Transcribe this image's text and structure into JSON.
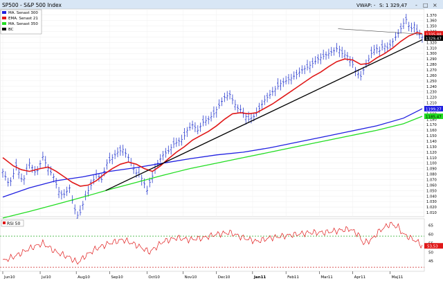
{
  "header": {
    "symbol": "SP500 - S&P 500 Index",
    "vwap": "VWAP: -",
    "s_label": "S: 1 329,47",
    "win_icons": [
      "-",
      "□",
      "×"
    ]
  },
  "legend": {
    "items": [
      {
        "label": "MA. Senast 300",
        "color": "#1f1fe0"
      },
      {
        "label": "EMA. Senast 21",
        "color": "#e01818"
      },
      {
        "label": "MA. Senast 350",
        "color": "#22dd22"
      },
      {
        "label": "BC",
        "color": "#000000"
      }
    ]
  },
  "rsi_panel": {
    "label": "RSI 50",
    "ticks": [
      "65",
      "60",
      "55",
      "50",
      "45"
    ],
    "badge": "53,53"
  },
  "chart_data": {
    "type": "candlestick",
    "title": "SP500 - S&P 500 Index",
    "x_ticks": [
      "Jun10",
      "Jul10",
      "Aug10",
      "Sep10",
      "Oct10",
      "Nov10",
      "Dec10",
      "Jan11",
      "Feb11",
      "Mar11",
      "Apr11",
      "Maj11"
    ],
    "y_ticks": [
      "1.370",
      "1.360",
      "1.350",
      "1.340",
      "1.330",
      "1.320",
      "1.310",
      "1.300",
      "1.290",
      "1.280",
      "1.270",
      "1.260",
      "1.250",
      "1.240",
      "1.230",
      "1.220",
      "1.210",
      "1.200",
      "1.190",
      "1.180",
      "1.170",
      "1.160",
      "1.150",
      "1.140",
      "1.130",
      "1.120",
      "1.110",
      "1.100",
      "1.090",
      "1.080",
      "1.070",
      "1.060",
      "1.050",
      "1.040",
      "1.030",
      "1.020",
      "1.010"
    ],
    "ylim": [
      1005,
      1376
    ],
    "badges": {
      "ma300": "1199,27",
      "ma350": "1185,47",
      "last": "1329,47",
      "ema21": "1335,88"
    },
    "close_points": [
      [
        0,
        1085
      ],
      [
        5,
        1060
      ],
      [
        10,
        1095
      ],
      [
        15,
        1065
      ],
      [
        20,
        1100
      ],
      [
        25,
        1080
      ],
      [
        30,
        1112
      ],
      [
        33,
        1095
      ],
      [
        38,
        1075
      ],
      [
        42,
        1048
      ],
      [
        45,
        1040
      ],
      [
        50,
        1055
      ],
      [
        53,
        1020
      ],
      [
        56,
        1005
      ],
      [
        58,
        1010
      ],
      [
        62,
        1040
      ],
      [
        66,
        1060
      ],
      [
        70,
        1080
      ],
      [
        74,
        1070
      ],
      [
        78,
        1100
      ],
      [
        82,
        1110
      ],
      [
        86,
        1120
      ],
      [
        90,
        1125
      ],
      [
        94,
        1110
      ],
      [
        97,
        1095
      ],
      [
        100,
        1082
      ],
      [
        103,
        1078
      ],
      [
        106,
        1062
      ],
      [
        108,
        1050
      ],
      [
        110,
        1065
      ],
      [
        113,
        1082
      ],
      [
        116,
        1100
      ],
      [
        120,
        1115
      ],
      [
        124,
        1122
      ],
      [
        128,
        1135
      ],
      [
        132,
        1140
      ],
      [
        135,
        1145
      ],
      [
        138,
        1160
      ],
      [
        142,
        1170
      ],
      [
        146,
        1160
      ],
      [
        150,
        1175
      ],
      [
        154,
        1180
      ],
      [
        158,
        1190
      ],
      [
        162,
        1205
      ],
      [
        166,
        1220
      ],
      [
        170,
        1225
      ],
      [
        173,
        1210
      ],
      [
        176,
        1200
      ],
      [
        178,
        1198
      ],
      [
        180,
        1190
      ],
      [
        184,
        1180
      ],
      [
        188,
        1185
      ],
      [
        192,
        1200
      ],
      [
        196,
        1215
      ],
      [
        200,
        1225
      ],
      [
        204,
        1235
      ],
      [
        208,
        1245
      ],
      [
        212,
        1250
      ],
      [
        216,
        1255
      ],
      [
        220,
        1262
      ],
      [
        224,
        1270
      ],
      [
        228,
        1275
      ],
      [
        232,
        1282
      ],
      [
        236,
        1290
      ],
      [
        240,
        1295
      ],
      [
        244,
        1300
      ],
      [
        248,
        1305
      ],
      [
        251,
        1310
      ],
      [
        254,
        1300
      ],
      [
        258,
        1295
      ],
      [
        262,
        1280
      ],
      [
        265,
        1265
      ],
      [
        268,
        1258
      ],
      [
        270,
        1270
      ],
      [
        273,
        1285
      ],
      [
        276,
        1300
      ],
      [
        279,
        1310
      ],
      [
        282,
        1305
      ],
      [
        285,
        1315
      ],
      [
        288,
        1310
      ],
      [
        291,
        1318
      ],
      [
        294,
        1330
      ],
      [
        297,
        1340
      ],
      [
        300,
        1355
      ],
      [
        302,
        1362
      ],
      [
        304,
        1350
      ],
      [
        306,
        1345
      ],
      [
        308,
        1352
      ],
      [
        310,
        1340
      ],
      [
        312,
        1335
      ],
      [
        314,
        1330
      ]
    ],
    "series": [
      {
        "name": "MA. Senast 300",
        "color": "#1f1fe0",
        "points": [
          [
            0,
            1038
          ],
          [
            20,
            1055
          ],
          [
            40,
            1068
          ],
          [
            60,
            1075
          ],
          [
            80,
            1085
          ],
          [
            100,
            1092
          ],
          [
            120,
            1100
          ],
          [
            140,
            1108
          ],
          [
            160,
            1115
          ],
          [
            180,
            1120
          ],
          [
            200,
            1128
          ],
          [
            220,
            1138
          ],
          [
            240,
            1148
          ],
          [
            260,
            1158
          ],
          [
            280,
            1168
          ],
          [
            300,
            1182
          ],
          [
            314,
            1199.27
          ]
        ]
      },
      {
        "name": "EMA. Senast 21",
        "color": "#e01818",
        "points": [
          [
            0,
            1110
          ],
          [
            8,
            1095
          ],
          [
            14,
            1088
          ],
          [
            20,
            1085
          ],
          [
            28,
            1090
          ],
          [
            34,
            1093
          ],
          [
            40,
            1085
          ],
          [
            46,
            1075
          ],
          [
            52,
            1065
          ],
          [
            58,
            1058
          ],
          [
            64,
            1060
          ],
          [
            70,
            1068
          ],
          [
            76,
            1080
          ],
          [
            82,
            1090
          ],
          [
            88,
            1098
          ],
          [
            94,
            1102
          ],
          [
            100,
            1098
          ],
          [
            106,
            1090
          ],
          [
            112,
            1085
          ],
          [
            118,
            1095
          ],
          [
            124,
            1108
          ],
          [
            130,
            1120
          ],
          [
            136,
            1130
          ],
          [
            142,
            1142
          ],
          [
            148,
            1150
          ],
          [
            154,
            1158
          ],
          [
            160,
            1168
          ],
          [
            166,
            1180
          ],
          [
            172,
            1190
          ],
          [
            178,
            1192
          ],
          [
            184,
            1190
          ],
          [
            190,
            1192
          ],
          [
            196,
            1200
          ],
          [
            202,
            1208
          ],
          [
            208,
            1218
          ],
          [
            214,
            1228
          ],
          [
            220,
            1238
          ],
          [
            226,
            1248
          ],
          [
            232,
            1258
          ],
          [
            238,
            1266
          ],
          [
            244,
            1276
          ],
          [
            250,
            1285
          ],
          [
            256,
            1290
          ],
          [
            262,
            1288
          ],
          [
            268,
            1280
          ],
          [
            274,
            1282
          ],
          [
            280,
            1292
          ],
          [
            286,
            1300
          ],
          [
            292,
            1310
          ],
          [
            298,
            1322
          ],
          [
            304,
            1332
          ],
          [
            310,
            1338
          ],
          [
            314,
            1335.88
          ]
        ]
      },
      {
        "name": "MA. Senast 350",
        "color": "#22dd22",
        "points": [
          [
            0,
            1000
          ],
          [
            20,
            1012
          ],
          [
            40,
            1025
          ],
          [
            60,
            1038
          ],
          [
            80,
            1052
          ],
          [
            100,
            1065
          ],
          [
            120,
            1078
          ],
          [
            140,
            1090
          ],
          [
            160,
            1100
          ],
          [
            180,
            1110
          ],
          [
            200,
            1120
          ],
          [
            220,
            1130
          ],
          [
            240,
            1140
          ],
          [
            260,
            1150
          ],
          [
            280,
            1160
          ],
          [
            300,
            1172
          ],
          [
            314,
            1185.47
          ]
        ]
      },
      {
        "name": "BC",
        "color": "#000000",
        "points": [
          [
            77,
            1050
          ],
          [
            314,
            1325
          ]
        ]
      }
    ],
    "rsi": {
      "ylim": [
        40,
        68
      ],
      "points": [
        [
          0,
          45
        ],
        [
          10,
          48
        ],
        [
          20,
          52
        ],
        [
          30,
          55
        ],
        [
          40,
          50
        ],
        [
          50,
          47
        ],
        [
          56,
          44
        ],
        [
          62,
          48
        ],
        [
          70,
          52
        ],
        [
          80,
          55
        ],
        [
          90,
          57
        ],
        [
          100,
          54
        ],
        [
          110,
          50
        ],
        [
          120,
          56
        ],
        [
          130,
          58
        ],
        [
          140,
          57
        ],
        [
          150,
          58
        ],
        [
          160,
          60
        ],
        [
          170,
          61
        ],
        [
          180,
          58
        ],
        [
          190,
          56
        ],
        [
          200,
          58
        ],
        [
          210,
          59
        ],
        [
          220,
          60
        ],
        [
          230,
          61
        ],
        [
          240,
          61
        ],
        [
          250,
          62
        ],
        [
          260,
          63
        ],
        [
          266,
          60
        ],
        [
          270,
          55
        ],
        [
          276,
          57
        ],
        [
          282,
          62
        ],
        [
          290,
          66
        ],
        [
          296,
          64
        ],
        [
          300,
          60
        ],
        [
          305,
          58
        ],
        [
          310,
          56
        ],
        [
          314,
          53.53
        ]
      ]
    }
  }
}
